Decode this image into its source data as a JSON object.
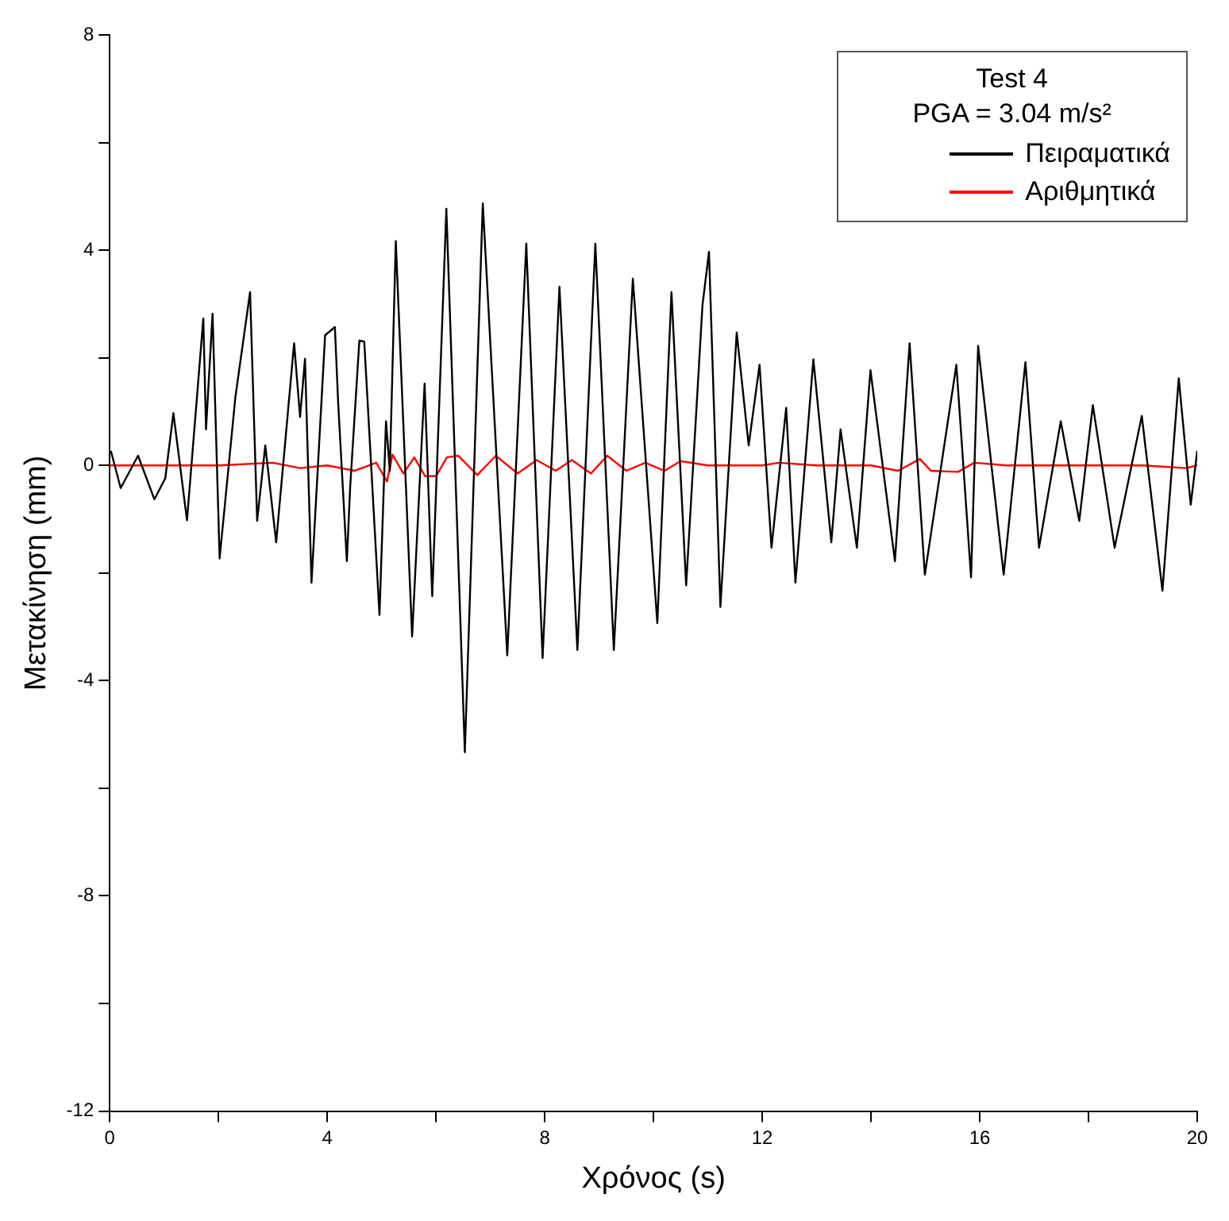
{
  "chart_data": {
    "type": "line",
    "xlabel": "Χρόνος (s)",
    "ylabel": "Μετακίνηση (mm)",
    "legend_title": "Test 4\nPGA = 3.04 m/s²",
    "legend": "top right",
    "grid": false,
    "marker": "none",
    "line_style": "solid",
    "xlim": [
      0,
      20
    ],
    "xticks": [
      0,
      {
        "value": 2,
        "label": null
      },
      4,
      {
        "value": 6,
        "label": null
      },
      8,
      {
        "value": 10,
        "label": null
      },
      12,
      {
        "value": 14,
        "label": null
      },
      16,
      {
        "value": 18,
        "label": null
      },
      20
    ],
    "ylim": [
      -12,
      8
    ],
    "yticks": [
      -12,
      {
        "value": -10,
        "label": null
      },
      -8,
      {
        "value": -6,
        "label": null
      },
      -4,
      {
        "value": -2,
        "label": null
      },
      0,
      {
        "value": 2,
        "label": null
      },
      4,
      {
        "value": 6,
        "label": null
      },
      8
    ],
    "series": [
      {
        "name": "Πειραματικά",
        "color": "#000000",
        "x": [
          0.02,
          0.2,
          0.52,
          0.82,
          1.02,
          1.17,
          1.42,
          1.72,
          1.77,
          1.89,
          2.02,
          2.31,
          2.58,
          2.71,
          2.86,
          3.06,
          3.39,
          3.5,
          3.59,
          3.71,
          3.96,
          4.14,
          4.2,
          4.36,
          4.42,
          4.59,
          4.68,
          4.96,
          5.08,
          5.15,
          5.26,
          5.56,
          5.79,
          5.93,
          6.19,
          6.53,
          6.86,
          7.31,
          7.66,
          7.96,
          8.27,
          8.6,
          8.93,
          9.27,
          9.62,
          10.07,
          10.33,
          10.6,
          10.9,
          11.02,
          11.23,
          11.53,
          11.75,
          11.95,
          12.17,
          12.44,
          12.61,
          12.94,
          13.27,
          13.44,
          13.74,
          13.99,
          14.44,
          14.71,
          14.99,
          15.57,
          15.84,
          15.97,
          16.44,
          16.84,
          17.09,
          17.49,
          17.83,
          18.08,
          18.48,
          18.98,
          19.36,
          19.66,
          19.88,
          20
        ],
        "values": [
          0.27,
          -0.42,
          0.18,
          -0.63,
          -0.24,
          0.97,
          -1.02,
          2.73,
          0.67,
          2.82,
          -1.73,
          1.27,
          3.22,
          -1.03,
          0.37,
          -1.43,
          2.27,
          0.9,
          1.98,
          -2.18,
          2.42,
          2.57,
          1.17,
          -1.78,
          -0.42,
          2.32,
          2.3,
          -2.78,
          0.82,
          -0.1,
          4.17,
          -3.18,
          1.52,
          -2.43,
          4.77,
          -5.33,
          4.87,
          -3.53,
          4.12,
          -3.58,
          3.32,
          -3.43,
          4.12,
          -3.43,
          3.47,
          -2.93,
          3.22,
          -2.23,
          2.97,
          3.97,
          -2.63,
          2.47,
          0.37,
          1.87,
          -1.53,
          1.07,
          -2.18,
          1.97,
          -1.43,
          0.67,
          -1.53,
          1.77,
          -1.78,
          2.27,
          -2.03,
          1.87,
          -2.08,
          2.22,
          -2.03,
          1.92,
          -1.53,
          0.82,
          -1.03,
          1.12,
          -1.53,
          0.92,
          -2.33,
          1.62,
          -0.73,
          0.27
        ]
      },
      {
        "name": "Αριθμητικά",
        "color": "#ff0000",
        "x": [
          0,
          1,
          2,
          3,
          3.5,
          4,
          4.5,
          4.9,
          5.1,
          5.2,
          5.4,
          5.6,
          5.8,
          6.0,
          6.2,
          6.41,
          6.76,
          7.1,
          7.5,
          7.85,
          8.2,
          8.5,
          8.85,
          9.15,
          9.5,
          9.85,
          10.2,
          10.5,
          11,
          12,
          12.3,
          13,
          14,
          14.5,
          14.9,
          15.1,
          15.6,
          15.9,
          16.5,
          17,
          18,
          19,
          19.8,
          20
        ],
        "values": [
          0,
          0,
          0,
          0.05,
          -0.05,
          0,
          -0.1,
          0.05,
          -0.3,
          0.2,
          -0.15,
          0.15,
          -0.2,
          -0.2,
          0.15,
          0.18,
          -0.18,
          0.18,
          -0.15,
          0.1,
          -0.1,
          0.1,
          -0.15,
          0.18,
          -0.1,
          0.05,
          -0.1,
          0.08,
          0,
          0,
          0.05,
          0,
          0,
          -0.1,
          0.12,
          -0.1,
          -0.12,
          0.05,
          0,
          0,
          0,
          0,
          -0.05,
          0
        ]
      }
    ]
  }
}
